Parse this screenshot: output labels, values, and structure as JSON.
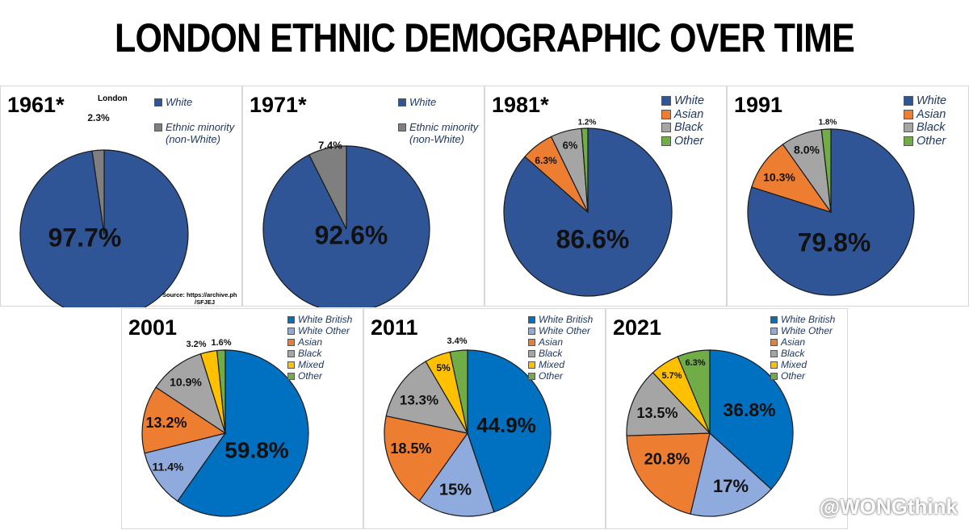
{
  "title": "LONDON ETHNIC DEMOGRAPHIC OVER TIME",
  "watermark": "@WONGthink",
  "note_london": "London",
  "source_line1": "Source: https://archive.ph",
  "source_line2": "/SFJEJ",
  "chart_data": [
    {
      "type": "pie",
      "title": "1961*",
      "labels": [
        "White",
        "Ethnic minority (non-White)"
      ],
      "values": [
        97.7,
        2.3
      ],
      "value_labels": [
        "97.7%",
        "2.3%"
      ],
      "colors": [
        "#2f5597",
        "#7f7f7f"
      ]
    },
    {
      "type": "pie",
      "title": "1971*",
      "labels": [
        "White",
        "Ethnic minority (non-White)"
      ],
      "values": [
        92.6,
        7.4
      ],
      "value_labels": [
        "92.6%",
        "7.4%"
      ],
      "colors": [
        "#2f5597",
        "#7f7f7f"
      ]
    },
    {
      "type": "pie",
      "title": "1981*",
      "labels": [
        "White",
        "Asian",
        "Black",
        "Other"
      ],
      "values": [
        86.6,
        6.3,
        6,
        1.2
      ],
      "value_labels": [
        "86.6%",
        "6.3%",
        "6%",
        "1.2%"
      ],
      "colors": [
        "#2f5597",
        "#ed7d31",
        "#a5a5a5",
        "#70ad47"
      ]
    },
    {
      "type": "pie",
      "title": "1991",
      "labels": [
        "White",
        "Asian",
        "Black",
        "Other"
      ],
      "values": [
        79.8,
        10.3,
        8.0,
        1.8
      ],
      "value_labels": [
        "79.8%",
        "10.3%",
        "8.0%",
        "1.8%"
      ],
      "colors": [
        "#2f5597",
        "#ed7d31",
        "#a5a5a5",
        "#70ad47"
      ]
    },
    {
      "type": "pie",
      "title": "2001",
      "labels": [
        "White British",
        "White Other",
        "Asian",
        "Black",
        "Mixed",
        "Other"
      ],
      "values": [
        59.8,
        11.4,
        13.2,
        10.9,
        3.2,
        1.6
      ],
      "value_labels": [
        "59.8%",
        "11.4%",
        "13.2%",
        "10.9%",
        "3.2%",
        "1.6%"
      ],
      "colors": [
        "#0070c0",
        "#8faadc",
        "#ed7d31",
        "#a5a5a5",
        "#ffc000",
        "#70ad47"
      ]
    },
    {
      "type": "pie",
      "title": "2011",
      "labels": [
        "White British",
        "White Other",
        "Asian",
        "Black",
        "Mixed",
        "Other"
      ],
      "values": [
        44.9,
        15,
        18.5,
        13.3,
        5,
        3.4
      ],
      "value_labels": [
        "44.9%",
        "15%",
        "18.5%",
        "13.3%",
        "5%",
        "3.4%"
      ],
      "colors": [
        "#0070c0",
        "#8faadc",
        "#ed7d31",
        "#a5a5a5",
        "#ffc000",
        "#70ad47"
      ]
    },
    {
      "type": "pie",
      "title": "2021",
      "labels": [
        "White British",
        "White Other",
        "Asian",
        "Black",
        "Mixed",
        "Other"
      ],
      "values": [
        36.8,
        17,
        20.8,
        13.5,
        5.7,
        6.3
      ],
      "value_labels": [
        "36.8%",
        "17%",
        "20.8%",
        "13.5%",
        "5.7%",
        "6.3%"
      ],
      "colors": [
        "#0070c0",
        "#8faadc",
        "#ed7d31",
        "#a5a5a5",
        "#ffc000",
        "#70ad47"
      ]
    }
  ]
}
